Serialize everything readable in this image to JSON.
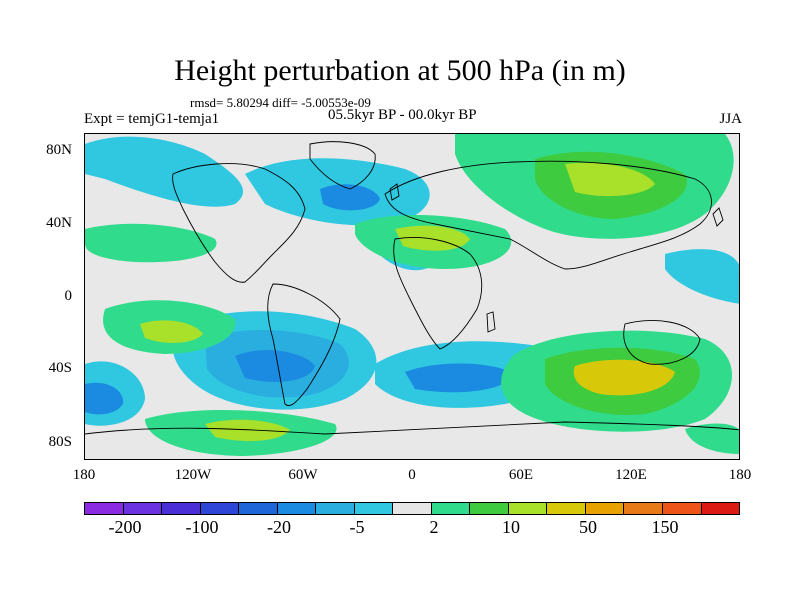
{
  "title": "Height perturbation at 500 hPa (in m)",
  "stats": "rmsd= 5.80294 diff= -5.00553e-09",
  "experiment": "Expt = temjG1-temja1",
  "period": "05.5kyr BP - 00.0kyr BP",
  "season": "JJA",
  "lat_ticks": [
    "80N",
    "40N",
    "0",
    "40S",
    "80S"
  ],
  "lon_ticks": [
    "180",
    "120W",
    "60W",
    "0",
    "60E",
    "120E",
    "180"
  ],
  "colorbar": {
    "colors": [
      "#8a2be2",
      "#6a32e0",
      "#4b2fd6",
      "#2e45d8",
      "#1f66d8",
      "#1a8be0",
      "#2aaee0",
      "#2fc8e0",
      "#e6e6e6",
      "#30dc8c",
      "#3ecb40",
      "#a8e02a",
      "#d8c80a",
      "#e8a200",
      "#e87b18",
      "#ee5418",
      "#dc1a14"
    ],
    "labels": [
      "-200",
      "-100",
      "-20",
      "-5",
      "2",
      "10",
      "50",
      "150"
    ]
  },
  "field_colors": {
    "neg1": "#2fc8e0",
    "neg2": "#2aaee0",
    "neg3": "#1a8be0",
    "pos1": "#30dc8c",
    "pos2": "#3ecb40",
    "pos3": "#a8e02a",
    "pos4": "#d8c80a",
    "coast": "#000000"
  }
}
